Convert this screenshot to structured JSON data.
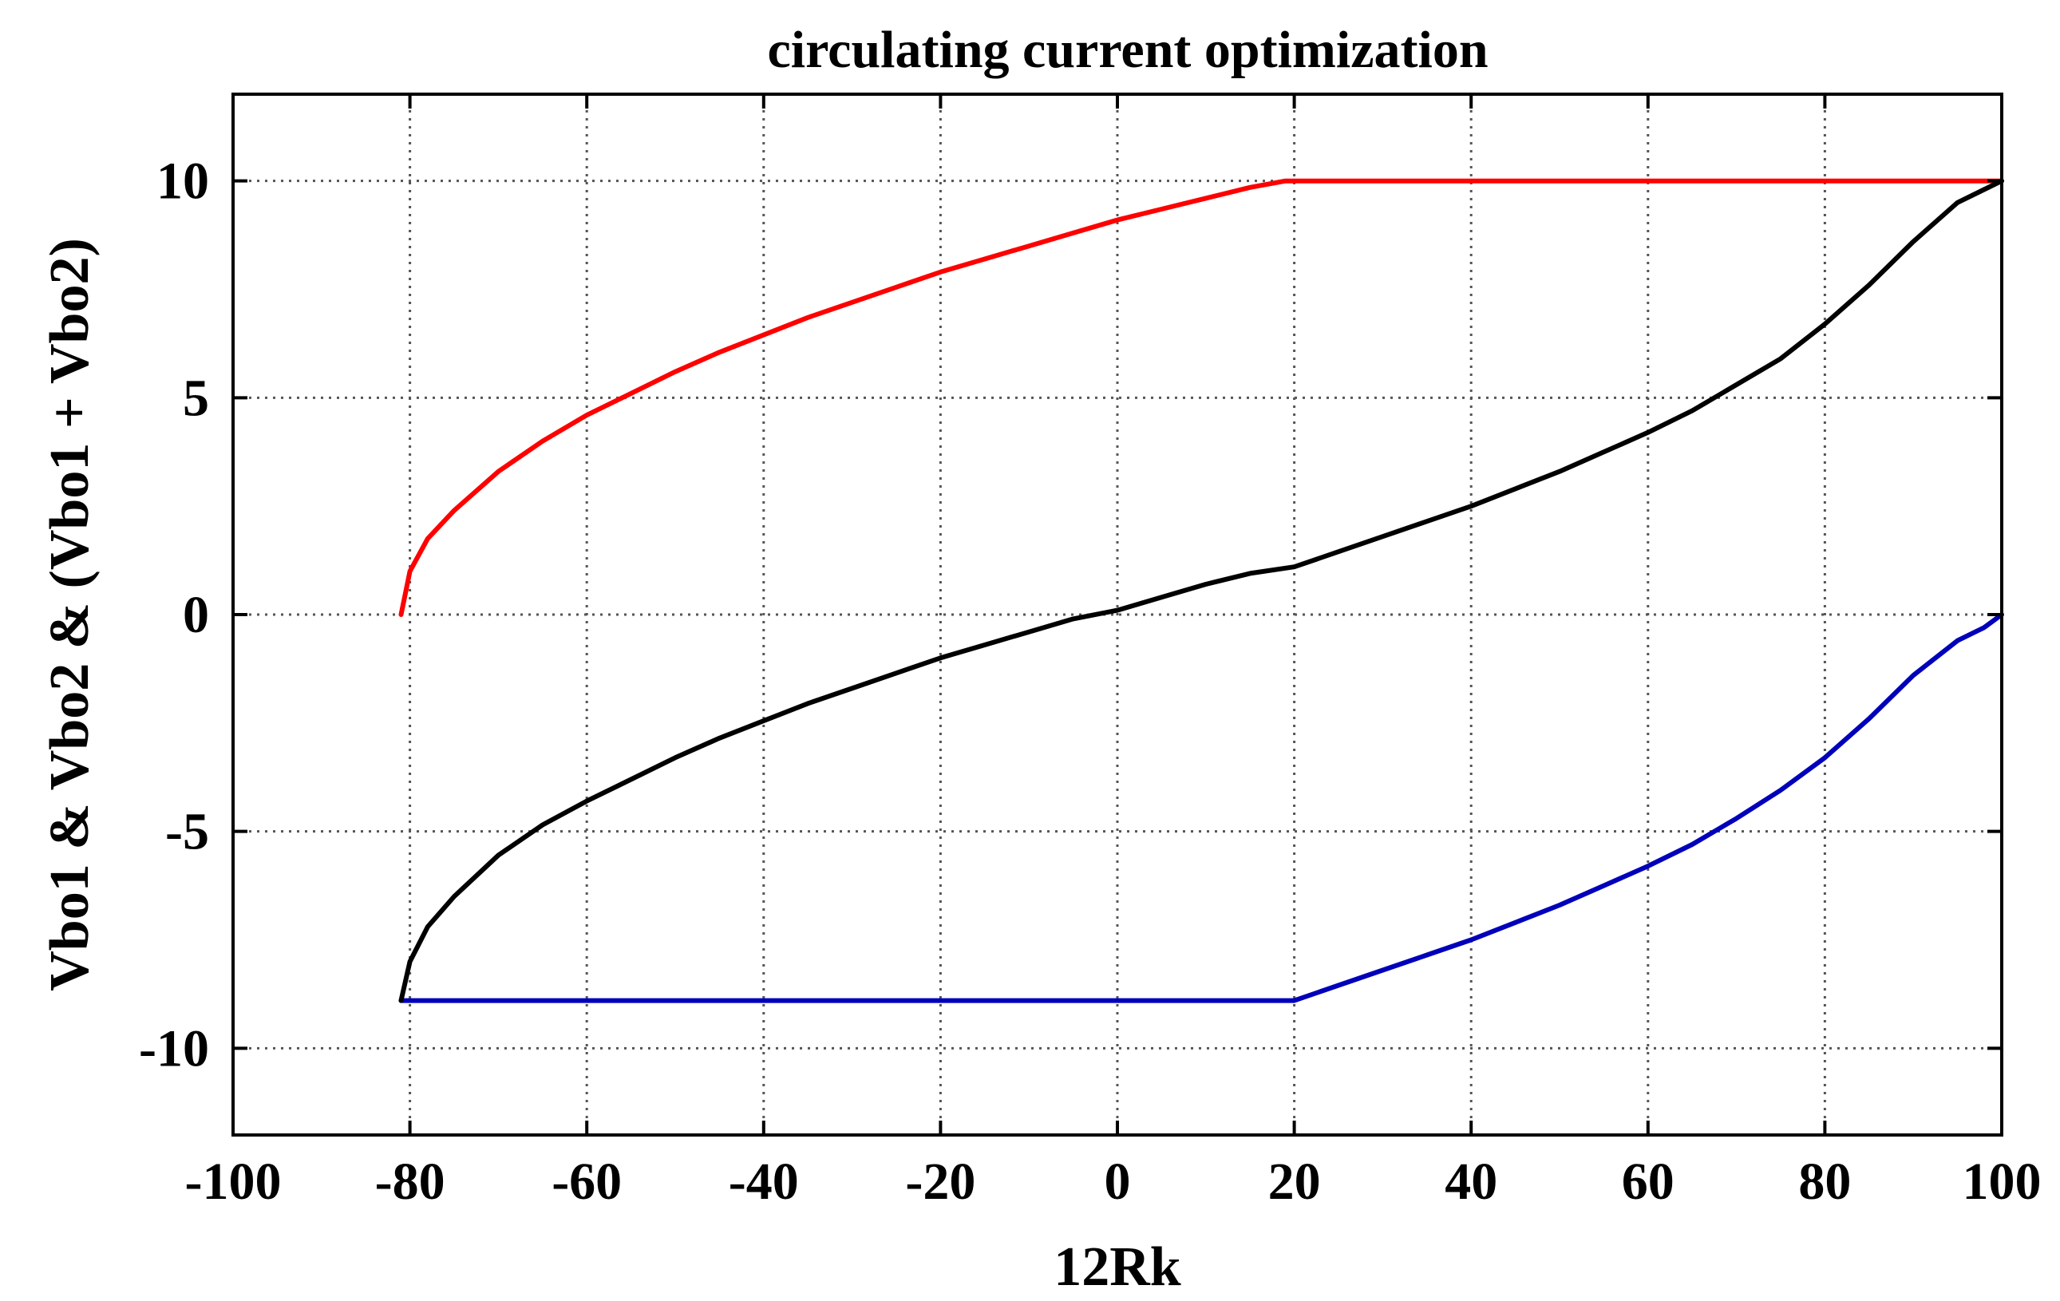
{
  "chart_data": {
    "type": "line",
    "title": "circulating current optimization",
    "xlabel": "12Rk",
    "ylabel": "Vbo1 & Vbo2 & (Vbo1 + Vbo2)",
    "xlim": [
      -100,
      100
    ],
    "ylim": [
      -12,
      12
    ],
    "grid": true,
    "x_ticks": [
      -100,
      -80,
      -60,
      -40,
      -20,
      0,
      20,
      40,
      60,
      80,
      100
    ],
    "x_tick_labels": [
      "-100",
      "-80",
      "-60",
      "-40",
      "-20",
      "0",
      "20",
      "40",
      "60",
      "80",
      "100"
    ],
    "y_ticks": [
      -10,
      -5,
      0,
      5,
      10
    ],
    "y_tick_labels": [
      "-10",
      "-5",
      "0",
      "5",
      "10"
    ],
    "colors": {
      "red": "#ff0000",
      "black": "#000000",
      "blue": "#0000bb"
    },
    "series": [
      {
        "name": "Vbo1",
        "color": "#ff0000",
        "x": [
          -81,
          -80,
          -78,
          -75,
          -70,
          -65,
          -60,
          -55,
          -50,
          -45,
          -40,
          -35,
          -30,
          -25,
          -20,
          -15,
          -10,
          -5,
          0,
          5,
          10,
          15,
          19,
          20,
          30,
          40,
          50,
          60,
          70,
          80,
          90,
          100
        ],
        "y": [
          0,
          1.0,
          1.75,
          2.4,
          3.3,
          4.0,
          4.6,
          5.1,
          5.6,
          6.05,
          6.45,
          6.85,
          7.2,
          7.55,
          7.9,
          8.2,
          8.5,
          8.8,
          9.1,
          9.35,
          9.6,
          9.85,
          10,
          10,
          10,
          10,
          10,
          10,
          10,
          10,
          10,
          10
        ]
      },
      {
        "name": "Vbo2",
        "color": "#0000bb",
        "x": [
          -81,
          -70,
          -60,
          -50,
          -40,
          -30,
          -20,
          -10,
          0,
          10,
          20,
          25,
          30,
          35,
          40,
          45,
          50,
          55,
          60,
          65,
          70,
          75,
          80,
          85,
          90,
          95,
          98,
          100
        ],
        "y": [
          -8.9,
          -8.9,
          -8.9,
          -8.9,
          -8.9,
          -8.9,
          -8.9,
          -8.9,
          -8.9,
          -8.9,
          -8.9,
          -8.55,
          -8.2,
          -7.85,
          -7.5,
          -7.1,
          -6.7,
          -6.25,
          -5.8,
          -5.3,
          -4.7,
          -4.05,
          -3.3,
          -2.4,
          -1.4,
          -0.6,
          -0.3,
          0
        ]
      },
      {
        "name": "Vbo1 + Vbo2",
        "color": "#000000",
        "x": [
          -81,
          -80,
          -78,
          -75,
          -70,
          -65,
          -60,
          -55,
          -50,
          -45,
          -40,
          -35,
          -30,
          -25,
          -20,
          -15,
          -10,
          -5,
          0,
          5,
          10,
          15,
          20,
          25,
          30,
          35,
          40,
          45,
          50,
          55,
          60,
          65,
          70,
          75,
          80,
          85,
          90,
          95,
          98,
          100
        ],
        "y": [
          -8.9,
          -8.0,
          -7.2,
          -6.5,
          -5.55,
          -4.85,
          -4.3,
          -3.8,
          -3.3,
          -2.85,
          -2.45,
          -2.05,
          -1.7,
          -1.35,
          -1.0,
          -0.7,
          -0.4,
          -0.1,
          0.1,
          0.4,
          0.7,
          0.95,
          1.1,
          1.45,
          1.8,
          2.15,
          2.5,
          2.9,
          3.3,
          3.75,
          4.2,
          4.7,
          5.3,
          5.9,
          6.7,
          7.6,
          8.6,
          9.5,
          9.8,
          10
        ]
      }
    ]
  }
}
